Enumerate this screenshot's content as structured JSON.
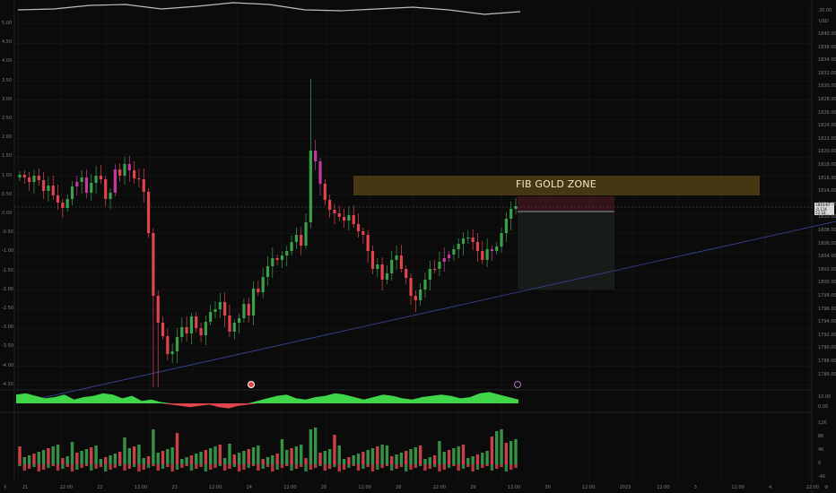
{
  "colors": {
    "background": "#0b0b0b",
    "grid": "#1c1c1c",
    "up": "#3aa14a",
    "down": "#e0454e",
    "pinkCandle": "#c23aa0",
    "fibZone": "#5a4715",
    "trendline": "#3c4aa0",
    "oscillatorUp": "#3fd64a",
    "oscillatorDown": "#e0454e"
  },
  "chart": {
    "fib_zone_label": "FIB GOLD ZONE",
    "currency_label": "USD",
    "top_right_value": "20.00",
    "price_badge": {
      "price": "1813.67",
      "change": "-0.11K",
      "time": "52:18"
    },
    "left_ticks": [
      "5.00",
      "4.50",
      "4.00",
      "3.50",
      "3.00",
      "2.50",
      "2.00",
      "1.50",
      "1.00",
      "0.50",
      "0.00",
      "-0.50",
      "-1.00",
      "-1.50",
      "-2.00",
      "-2.50",
      "-3.00",
      "-3.50",
      "-4.00",
      "-4.50"
    ],
    "right_ticks": [
      "1840.00",
      "1836.00",
      "1834.00",
      "1832.00",
      "1830.00",
      "1828.00",
      "1826.00",
      "1824.00",
      "1822.00",
      "1820.00",
      "1818.00",
      "1816.00",
      "1814.00",
      "1812.00",
      "1810.00",
      "1808.00",
      "1806.00",
      "1804.00",
      "1802.00",
      "1800.00",
      "1798.00",
      "1796.00",
      "1794.00",
      "1792.00",
      "1790.00",
      "1788.00",
      "1786.00"
    ],
    "oscillator_ticks": [
      "10.00",
      "0.00"
    ],
    "volume_ticks": [
      "12K",
      "8K",
      "4K",
      "0",
      "-4K"
    ],
    "x_ticks": [
      "21",
      "12:00",
      "22",
      "12:00",
      "23",
      "12:00",
      "24",
      "12:00",
      "26",
      "12:00",
      "28",
      "12:00",
      "29",
      "12:00",
      "30",
      "12:00",
      "2023",
      "12:00",
      "3",
      "12:00",
      "4",
      "12:00"
    ],
    "corner_left": "⚲",
    "corner_right": "⚙"
  }
}
